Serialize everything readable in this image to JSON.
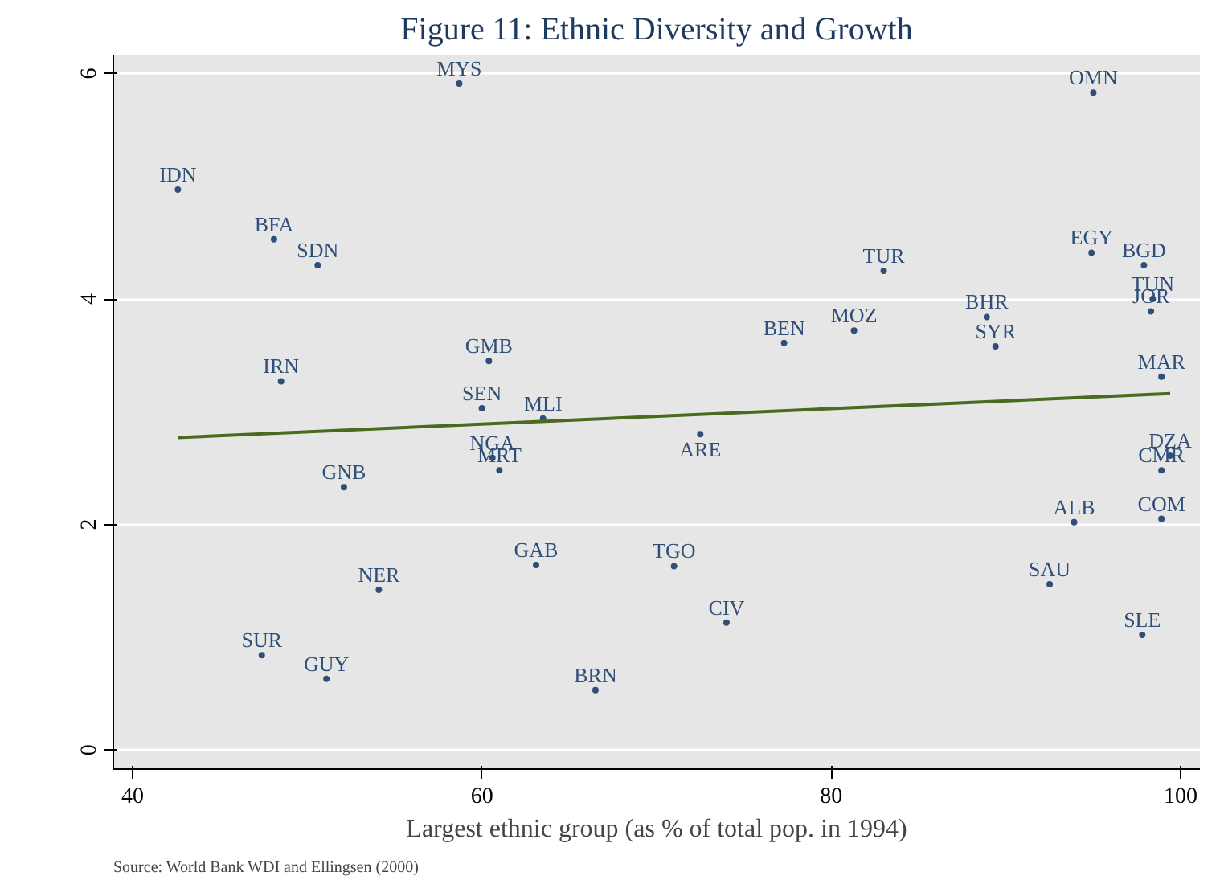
{
  "chart_data": {
    "type": "scatter",
    "title": "Figure 11: Ethnic Diversity and Growth",
    "xlabel": "Largest ethnic group (as % of total pop. in 1994)",
    "annotations": [
      "Source: World Bank WDI and Ellingsen (2000)"
    ],
    "xlim": [
      38.9,
      101.1
    ],
    "ylim": [
      -0.17,
      6.16
    ],
    "xticks": [
      40,
      60,
      80,
      100
    ],
    "yticks": [
      0,
      2,
      4,
      6
    ],
    "grid": "y",
    "series": [
      {
        "marker": "circle",
        "color": "#2f4f78",
        "x": [
          58.7,
          95.0,
          42.6,
          48.1,
          50.6,
          94.9,
          97.9,
          83.0,
          98.4,
          98.3,
          88.9,
          81.3,
          89.4,
          77.3,
          60.4,
          48.5,
          98.9,
          60.0,
          63.5,
          72.5,
          60.6,
          61.0,
          99.4,
          98.9,
          52.1,
          93.9,
          98.9,
          63.1,
          71.0,
          54.1,
          92.5,
          74.0,
          97.8,
          47.4,
          51.1,
          66.5
        ],
        "values": [
          5.91,
          5.83,
          4.97,
          4.53,
          4.3,
          4.41,
          4.3,
          4.25,
          4.0,
          3.89,
          3.84,
          3.72,
          3.58,
          3.61,
          3.45,
          3.27,
          3.31,
          3.03,
          2.94,
          2.8,
          2.59,
          2.48,
          2.61,
          2.48,
          2.33,
          2.02,
          2.05,
          1.64,
          1.63,
          1.42,
          1.47,
          1.13,
          1.02,
          0.84,
          0.63,
          0.53
        ],
        "value_labels": [
          "MYS",
          "OMN",
          "IDN",
          "BFA",
          "SDN",
          "EGY",
          "BGD",
          "TUR",
          "TUN",
          "JOR",
          "BHR",
          "MOZ",
          "SYR",
          "BEN",
          "GMB",
          "IRN",
          "MAR",
          "SEN",
          "MLI",
          "ARE",
          "NGA",
          "MRT",
          "DZA",
          "CMR",
          "GNB",
          "ALB",
          "COM",
          "GAB",
          "TGO",
          "NER",
          "SAU",
          "CIV",
          "SLE",
          "SUR",
          "GUY",
          "BRN"
        ]
      },
      {
        "type": "line",
        "marker": "none",
        "line_style": "solid",
        "color": "#4a6a1e",
        "x": [
          42.6,
          99.4
        ],
        "values": [
          2.77,
          3.16
        ]
      }
    ]
  }
}
